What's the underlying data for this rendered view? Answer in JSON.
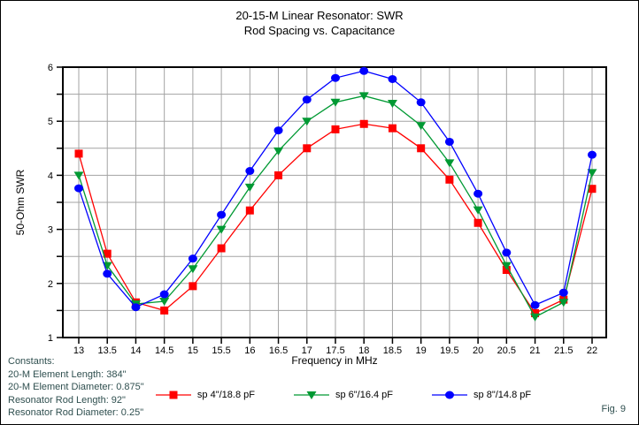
{
  "title": {
    "line1": "20-15-M Linear Resonator: SWR",
    "line2": "Rod Spacing vs. Capacitance"
  },
  "chart_data": {
    "type": "line",
    "title": "20-15-M Linear Resonator: SWR — Rod Spacing vs. Capacitance",
    "xlabel": "Frequency in MHz",
    "ylabel": "50-Ohm SWR",
    "xlim": [
      13,
      22
    ],
    "ylim": [
      1,
      6
    ],
    "x_tick_step": 0.5,
    "y_tick_step": 0.5,
    "y_label_step": 1,
    "grid": true,
    "legend_position": "bottom",
    "x": [
      13,
      13.5,
      14,
      14.5,
      15,
      15.5,
      16,
      16.5,
      17,
      17.5,
      18,
      18.5,
      19,
      19.5,
      20,
      20.5,
      21,
      21.5,
      22
    ],
    "series": [
      {
        "name": "sp 4\"/18.8 pF",
        "color": "#ff0000",
        "marker": "square",
        "values": [
          4.4,
          2.55,
          1.65,
          1.5,
          1.95,
          2.65,
          3.35,
          4.0,
          4.5,
          4.85,
          4.95,
          4.87,
          4.5,
          3.92,
          3.12,
          2.25,
          1.45,
          1.7,
          3.75
        ]
      },
      {
        "name": "sp 6\"/16.4 pF",
        "color": "#009933",
        "marker": "triangle-down",
        "values": [
          4.0,
          2.33,
          1.62,
          1.67,
          2.27,
          3.0,
          3.78,
          4.45,
          5.0,
          5.35,
          5.47,
          5.33,
          4.92,
          4.23,
          3.36,
          2.33,
          1.38,
          1.65,
          4.05
        ]
      },
      {
        "name": "sp 8\"/14.8 pF",
        "color": "#0000ff",
        "marker": "circle",
        "values": [
          3.76,
          2.18,
          1.56,
          1.8,
          2.46,
          3.27,
          4.08,
          4.83,
          5.4,
          5.8,
          5.93,
          5.78,
          5.35,
          4.62,
          3.66,
          2.57,
          1.6,
          1.83,
          4.38
        ]
      }
    ]
  },
  "annotations": {
    "constants": [
      "Constants:",
      "20-M Element Length: 384\"",
      "20-M Element Diameter: 0.875\"",
      "Resonator Rod Length: 92\"",
      "Resonator Rod Diameter: 0.25\""
    ],
    "figure_label": "Fig. 9",
    "text_color": "#2f4f4f"
  },
  "colors": {
    "grid": "#a3a3a3",
    "axis": "#000000",
    "background": "#ffffff",
    "text": "#000000"
  }
}
